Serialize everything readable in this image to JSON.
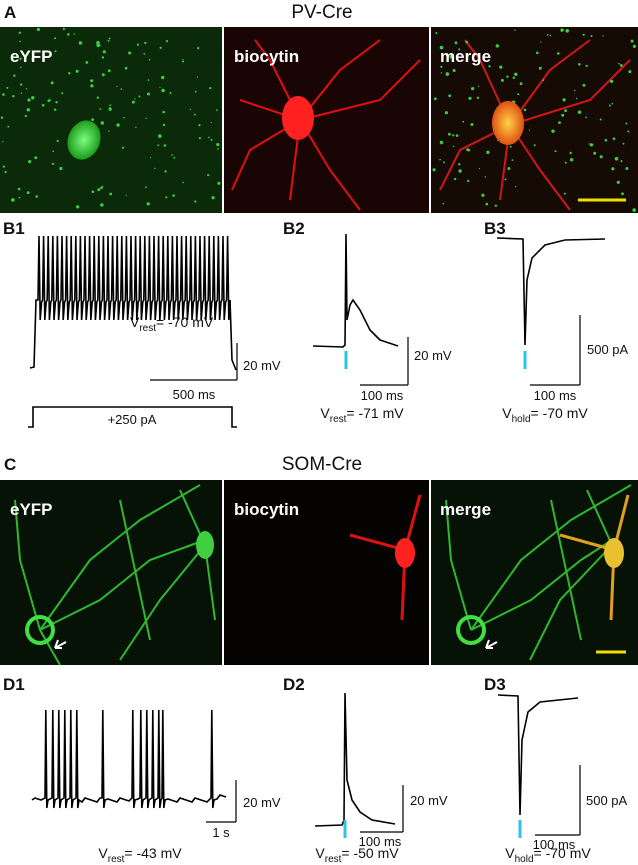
{
  "panel_a": {
    "label": "A",
    "title": "PV-Cre",
    "images": [
      "eYFP",
      "biocytin",
      "merge"
    ]
  },
  "panel_b": [
    {
      "label": "B1",
      "v_label": {
        "symbol": "V",
        "subscript": "rest",
        "text": "= -70 mV"
      },
      "scale_y": "20 mV",
      "scale_x": "500 ms",
      "stimulus": "+250 pA"
    },
    {
      "label": "B2",
      "v_label": {
        "symbol": "V",
        "subscript": "rest",
        "text": "= -71 mV"
      },
      "scale_y": "20 mV",
      "scale_x": "100 ms"
    },
    {
      "label": "B3",
      "v_label": {
        "symbol": "V",
        "subscript": "hold",
        "text": "= -70 mV"
      },
      "scale_y": "500 pA",
      "scale_x": "100 ms"
    }
  ],
  "panel_c": {
    "label": "C",
    "title": "SOM-Cre",
    "images": [
      "eYFP",
      "biocytin",
      "merge"
    ]
  },
  "panel_d": [
    {
      "label": "D1",
      "v_label": {
        "symbol": "V",
        "subscript": "rest",
        "text": "= -43 mV"
      },
      "scale_y": "20 mV",
      "scale_x": "1 s"
    },
    {
      "label": "D2",
      "v_label": {
        "symbol": "V",
        "subscript": "rest",
        "text": "= -50 mV"
      },
      "scale_y": "20 mV",
      "scale_x": "100 ms"
    },
    {
      "label": "D3",
      "v_label": {
        "symbol": "V",
        "subscript": "hold",
        "text": "= -70 mV"
      },
      "scale_y": "500 pA",
      "scale_x": "100 ms"
    }
  ]
}
